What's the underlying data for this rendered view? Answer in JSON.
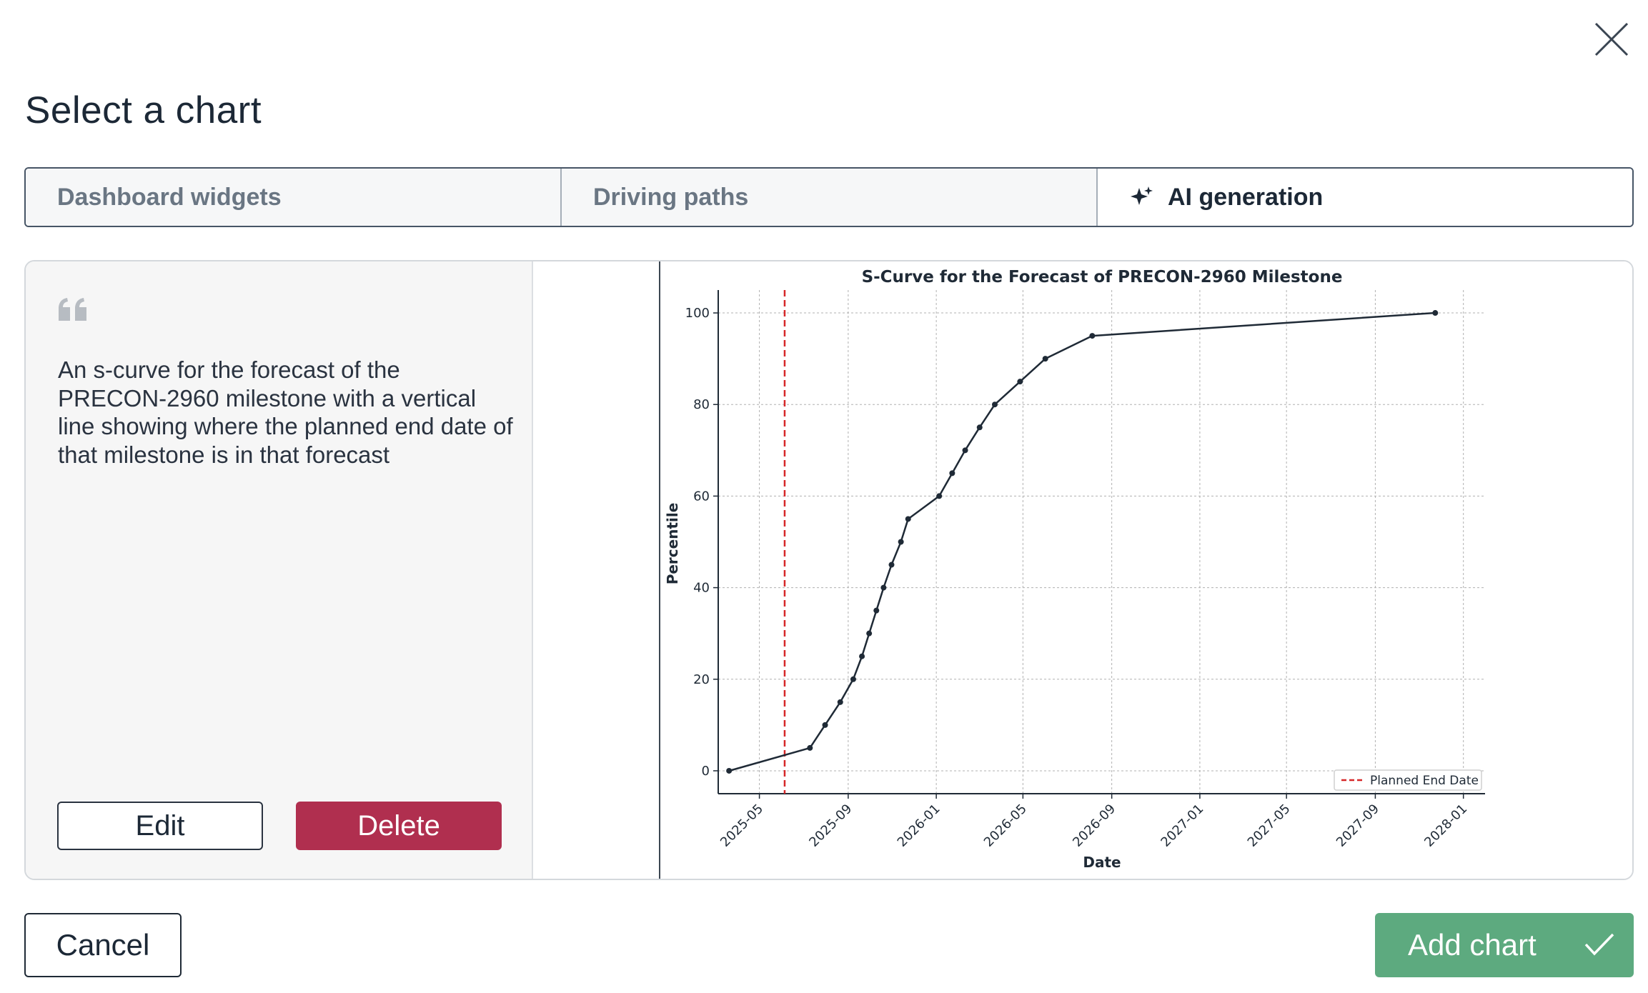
{
  "dialog": {
    "title": "Select a chart",
    "close_icon": "close-icon"
  },
  "tabs": [
    {
      "label": "Dashboard widgets",
      "active": false
    },
    {
      "label": "Driving paths",
      "active": false
    },
    {
      "label": "AI generation",
      "active": true,
      "icon": "sparkle-icon"
    }
  ],
  "prompt_card": {
    "quote_icon": "quote-icon",
    "text": "An s-curve for the forecast of the PRECON-2960 milestone with a vertical line showing where the planned end date of that milestone is in that forecast",
    "edit_label": "Edit",
    "delete_label": "Delete"
  },
  "footer": {
    "cancel_label": "Cancel",
    "add_label": "Add chart",
    "add_icon": "check-icon"
  },
  "colors": {
    "accent_green": "#5daa7f",
    "delete_red": "#b02f4f",
    "line": "#1f2a36",
    "planned_line": "#d62728"
  },
  "chart_data": {
    "type": "line",
    "title": "S-Curve for the Forecast of PRECON-2960 Milestone",
    "xlabel": "Date",
    "ylabel": "Percentile",
    "x_ticks": [
      "2025-05",
      "2025-09",
      "2026-01",
      "2026-05",
      "2026-09",
      "2027-01",
      "2027-05",
      "2027-09",
      "2028-01"
    ],
    "y_ticks": [
      0,
      20,
      40,
      60,
      80,
      100
    ],
    "xlim": [
      "2025-03-05",
      "2028-01-31"
    ],
    "ylim": [
      -5,
      105
    ],
    "grid": true,
    "legend_position": "bottom-right",
    "series": [
      {
        "x": [
          "2025-03-20",
          "2025-07-10",
          "2025-07-31",
          "2025-08-21",
          "2025-09-08",
          "2025-09-20",
          "2025-09-30",
          "2025-10-10",
          "2025-10-20",
          "2025-10-31",
          "2025-11-13",
          "2025-11-23",
          "2026-01-05",
          "2026-01-23",
          "2026-02-10",
          "2026-03-02",
          "2026-03-23",
          "2026-04-27",
          "2026-06-01",
          "2026-08-05",
          "2027-11-23"
        ],
        "y": [
          0,
          5,
          10,
          15,
          20,
          25,
          30,
          35,
          40,
          45,
          50,
          55,
          60,
          65,
          70,
          75,
          80,
          85,
          90,
          95,
          100
        ]
      }
    ],
    "annotations": [
      {
        "label": "Planned End Date",
        "type": "vline",
        "x": "2025-06-05",
        "style": "dashed"
      }
    ]
  }
}
